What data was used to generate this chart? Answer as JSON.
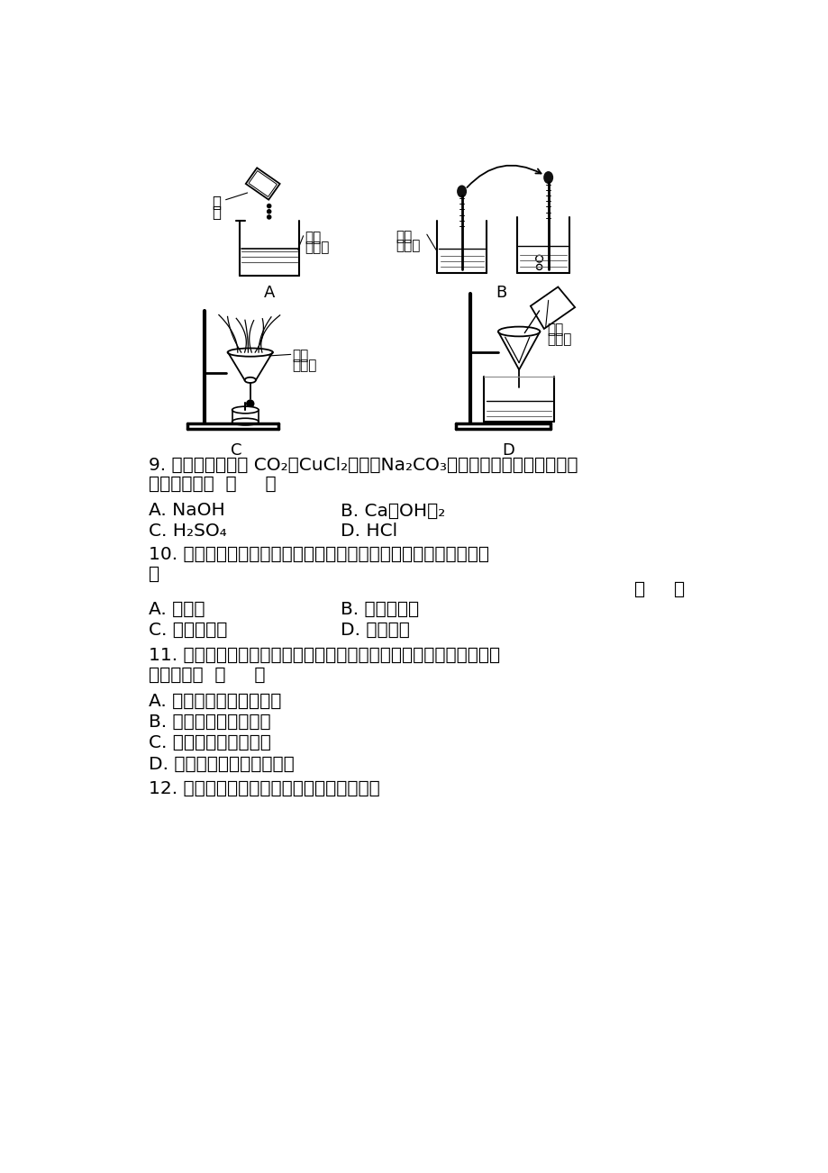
{
  "bg_color": "#ffffff",
  "text_color": "#000000",
  "cjk_font": "auto",
  "diagrams": {
    "A_label": "A",
    "B_label": "B",
    "C_label": "C",
    "D_label": "D"
  },
  "labels": {
    "zhetan": "蔗糖",
    "baohe_yanshui": "饱和\n食盐水"
  },
  "questions": {
    "q9_line1": "9. 下列物质中，与 CO₂、CuCl₂溶液、Na₂CO₃溶液都能发生反应，且都有",
    "q9_line2": "明显现象的是  （     ）",
    "q9_A": "A. NaOH",
    "q9_B": "B. Ca（OH）₂",
    "q9_C": "C. H₂SO₄",
    "q9_D": "D. HCl",
    "q10_line1": "10. 滴有酚酬的氢氧化馒溶液与下列物质恰好完全反应后仍显红色的",
    "q10_line2": "是",
    "q10_bracket": "（     ）",
    "q10_A": "A. 稀硫酸",
    "q10_B": "B. 氯化铜溶液",
    "q10_C": "C. 碘酸钒溶液",
    "q10_D": "D. 二氧化碳",
    "q11_line1": "11. 下列两种物质的溶液混合后，能发生反应，且溶液的总质量不会发",
    "q11_line2": "生改变的是  （     ）",
    "q11_A": "A. 氢氧化钓溶液和稀盐酸",
    "q11_B": "B. 碘酸钓溶液和稀盐酸",
    "q11_C": "C. 氯化钓溶液和稀硫酸",
    "q11_D": "D. 碘酸钓溶液和氯化馒溶液",
    "q12_text": "12. 根据氨碱法用食盐制纯碱的反应原理是："
  }
}
